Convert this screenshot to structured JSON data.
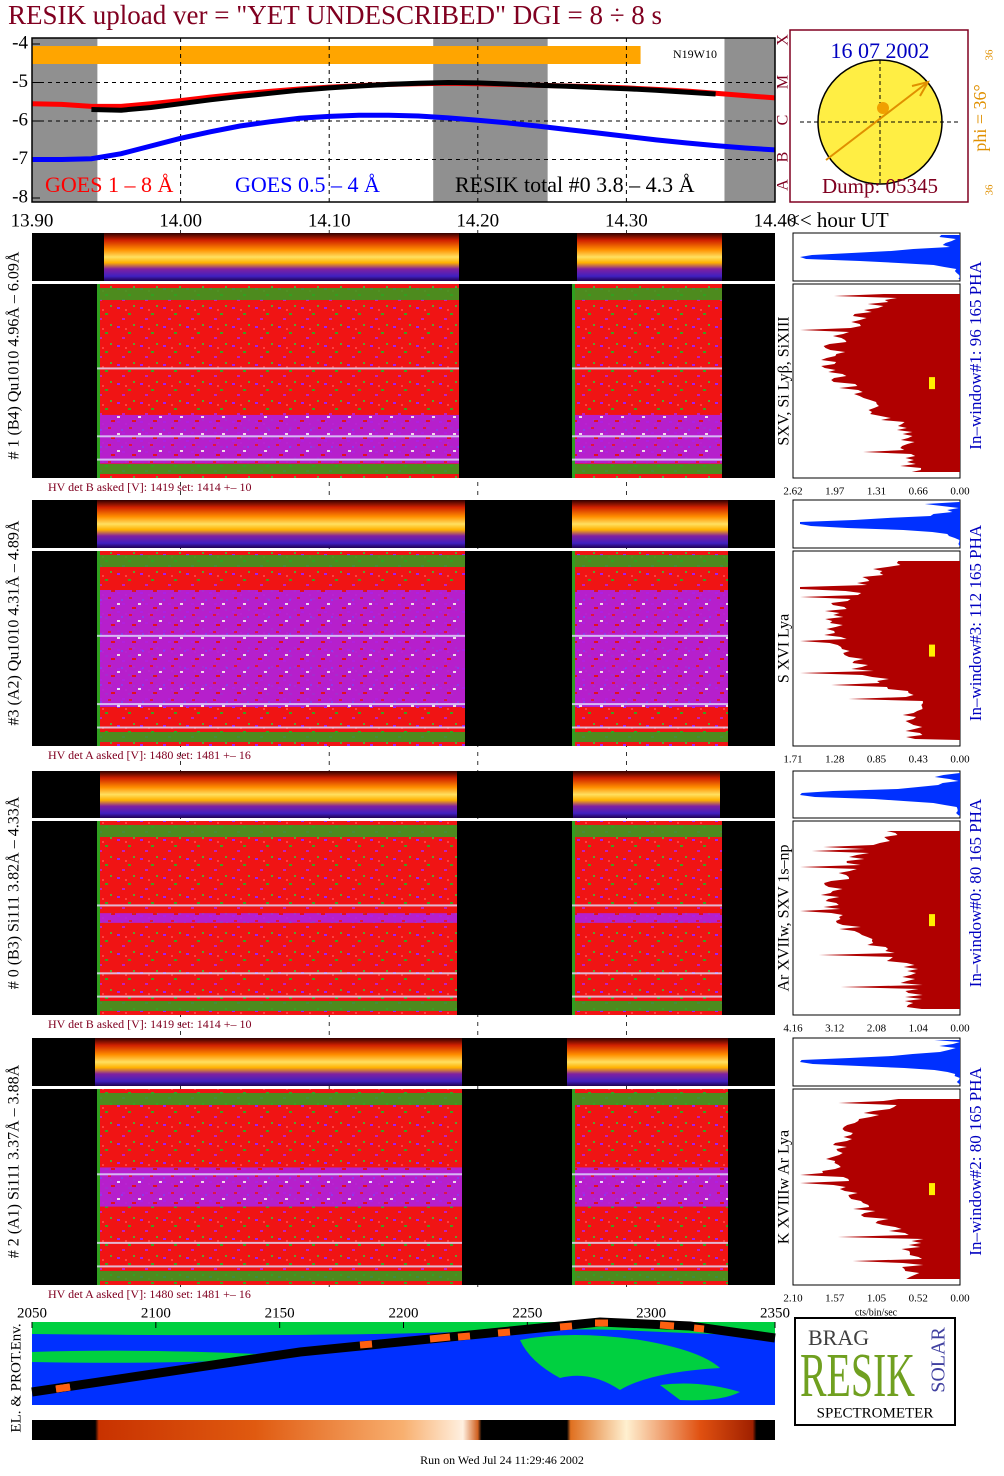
{
  "header": {
    "title": "RESIK upload ver = \"YET UNDESCRIBED\"  DGI =   8 ÷   8 s"
  },
  "chart_data": {
    "type": "line",
    "x": [
      13.9,
      13.92,
      13.94,
      13.96,
      13.98,
      14.0,
      14.02,
      14.04,
      14.06,
      14.08,
      14.1,
      14.12,
      14.14,
      14.16,
      14.18,
      14.2,
      14.22,
      14.24,
      14.26,
      14.28,
      14.3,
      14.32,
      14.34,
      14.36,
      14.38,
      14.4
    ],
    "series": [
      {
        "name": "GOES 1 – 8 Å",
        "color": "#ff0000",
        "values": [
          -5.55,
          -5.57,
          -5.62,
          -5.62,
          -5.55,
          -5.47,
          -5.38,
          -5.3,
          -5.23,
          -5.17,
          -5.12,
          -5.08,
          -5.05,
          -5.03,
          -5.02,
          -5.03,
          -5.05,
          -5.07,
          -5.09,
          -5.11,
          -5.14,
          -5.18,
          -5.22,
          -5.28,
          -5.34,
          -5.4
        ]
      },
      {
        "name": "GOES 0.5 – 4 Å",
        "color": "#0000ff",
        "values": [
          -7.0,
          -7.0,
          -6.98,
          -6.85,
          -6.65,
          -6.45,
          -6.28,
          -6.13,
          -6.02,
          -5.93,
          -5.88,
          -5.85,
          -5.85,
          -5.87,
          -5.92,
          -5.98,
          -6.05,
          -6.13,
          -6.22,
          -6.31,
          -6.4,
          -6.49,
          -6.57,
          -6.64,
          -6.7,
          -6.75
        ]
      },
      {
        "name": "RESIK total #0  3.8 – 4.3 Å",
        "color": "#000000",
        "values": [
          null,
          null,
          -5.7,
          -5.72,
          -5.65,
          -5.55,
          -5.45,
          -5.36,
          -5.28,
          -5.2,
          -5.14,
          -5.09,
          -5.05,
          -5.02,
          -5.0,
          -5.01,
          -5.04,
          -5.07,
          -5.1,
          -5.13,
          -5.16,
          -5.2,
          -5.25,
          -5.3,
          null,
          null
        ]
      }
    ],
    "xlim": [
      13.9,
      14.4
    ],
    "xticks": [
      {
        "value": 13.9,
        "label": "13.90"
      },
      {
        "value": 14.0,
        "label": "14.00"
      },
      {
        "value": 14.1,
        "label": "14.10"
      },
      {
        "value": 14.2,
        "label": "14.20"
      },
      {
        "value": 14.3,
        "label": "14.30"
      },
      {
        "value": 14.4,
        "label": "14.40"
      }
    ],
    "x_label": "<< hour UT",
    "ylim": [
      -8,
      -4
    ],
    "yticks": [
      -8,
      -7,
      -6,
      -5,
      -4
    ],
    "grid": true,
    "shaded": [
      [
        13.9,
        13.944
      ],
      [
        14.17,
        14.247
      ],
      [
        14.366,
        14.4
      ]
    ],
    "annotation": "N19W10",
    "class_labels": [
      "A",
      "B",
      "C",
      "M",
      "X"
    ]
  },
  "sun": {
    "date": "16 07 2002",
    "dump": "Dump: 05345",
    "phi": "phi = 36°",
    "phi_ticks": [
      "36",
      "36"
    ]
  },
  "detectors": [
    {
      "label": "# 1 (B4) Qu1010 4.96Å – 6.09Å",
      "lines": "SXV, Si Lyβ, SiXIII",
      "window": "In–window#1:  96 165 PHA",
      "hv": "HV det B asked [V]:  1419 set:  1414  +–   10",
      "ticks": [
        "2.62",
        "1.97",
        "1.31",
        "0.66",
        "0.00"
      ]
    },
    {
      "label": "#3 (A2) Qu1010  4.31Å – 4.89Å",
      "lines": "S XVI Lya",
      "window": "In–window#3:  112 165 PHA",
      "hv": "HV det A asked [V]:  1480 set:  1481  +–   16",
      "ticks": [
        "1.71",
        "1.28",
        "0.85",
        "0.43",
        "0.00"
      ]
    },
    {
      "label": "# 0 (B3) Si111  3.82Å – 4.33Å",
      "lines": "Ar XVIIw,  SXV 1s–np",
      "window": "In–window#0:   80 165 PHA",
      "hv": "HV det B asked [V]:  1419 set:  1414  +–   10",
      "ticks": [
        "4.16",
        "3.12",
        "2.08",
        "1.04",
        "0.00"
      ]
    },
    {
      "label": "# 2 (A1) Si111  3.37Å – 3.88Å",
      "lines": "K XVIIIw  Ar Lya",
      "window": "In–window#2:   80 165 PHA",
      "hv": "HV det A asked [V]:  1480 set:  1481  +–   16",
      "ticks": [
        "2.10",
        "1.57",
        "1.05",
        "0.52",
        "0.00"
      ]
    }
  ],
  "hist_unit": "cts/bin/sec",
  "orbit": {
    "label": "EL. & PROT.Env.",
    "xlim": [
      2050,
      2350
    ],
    "xticks": [
      2050,
      2100,
      2150,
      2200,
      2250,
      2300,
      2350
    ]
  },
  "logo": {
    "top": "BRAG",
    "main": "RESIK",
    "side": "SOLAR",
    "bottom": "SPECTROMETER"
  },
  "footer": "Run on Wed Jul 24 11:29:46 2002"
}
